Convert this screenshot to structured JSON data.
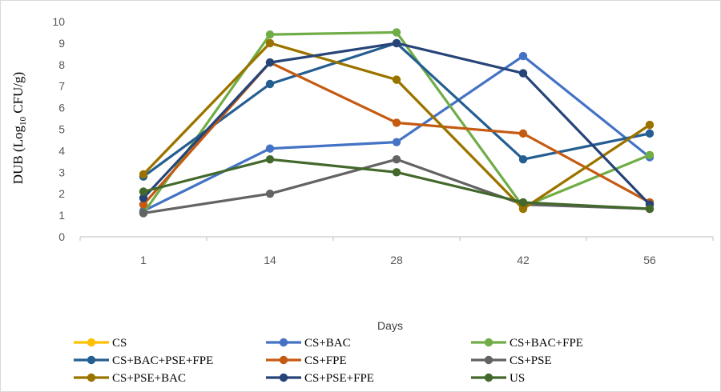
{
  "chart_data": {
    "type": "line",
    "title": "",
    "xlabel": "Days",
    "ylabel_main": "DUB (Log",
    "ylabel_sub": "10",
    "ylabel_end": " CFU/g)",
    "categories": [
      "1",
      "14",
      "28",
      "42",
      "56"
    ],
    "ylim": [
      0,
      10
    ],
    "yticks": [
      "0",
      "1",
      "2",
      "3",
      "4",
      "5",
      "6",
      "7",
      "8",
      "9",
      "10"
    ],
    "grid": false,
    "legend_position": "bottom",
    "series": [
      {
        "name": "CS",
        "color": "#FFC000",
        "values": [
          2.9,
          9.0,
          7.3,
          1.3,
          5.2
        ]
      },
      {
        "name": "CS+BAC",
        "color": "#4472C4",
        "values": [
          1.2,
          4.1,
          4.4,
          8.4,
          3.7
        ]
      },
      {
        "name": "CS+BAC+FPE",
        "color": "#70AD47",
        "values": [
          1.1,
          9.4,
          9.5,
          1.4,
          3.8
        ]
      },
      {
        "name": "CS+BAC+PSE+FPE",
        "color": "#255E91",
        "values": [
          2.8,
          7.1,
          9.0,
          3.6,
          4.8
        ]
      },
      {
        "name": "CS+FPE",
        "color": "#C55A11",
        "values": [
          1.5,
          8.1,
          5.3,
          4.8,
          1.6
        ]
      },
      {
        "name": "CS+PSE",
        "color": "#636363",
        "values": [
          1.1,
          2.0,
          3.6,
          1.5,
          1.3
        ]
      },
      {
        "name": "CS+PSE+BAC",
        "color": "#997300",
        "values": [
          2.9,
          9.0,
          7.3,
          1.3,
          5.2
        ]
      },
      {
        "name": "CS+PSE+FPE",
        "color": "#264478",
        "values": [
          1.8,
          8.1,
          9.0,
          7.6,
          1.5
        ]
      },
      {
        "name": "US",
        "color": "#43682B",
        "values": [
          2.1,
          3.6,
          3.0,
          1.6,
          1.3
        ]
      }
    ]
  }
}
